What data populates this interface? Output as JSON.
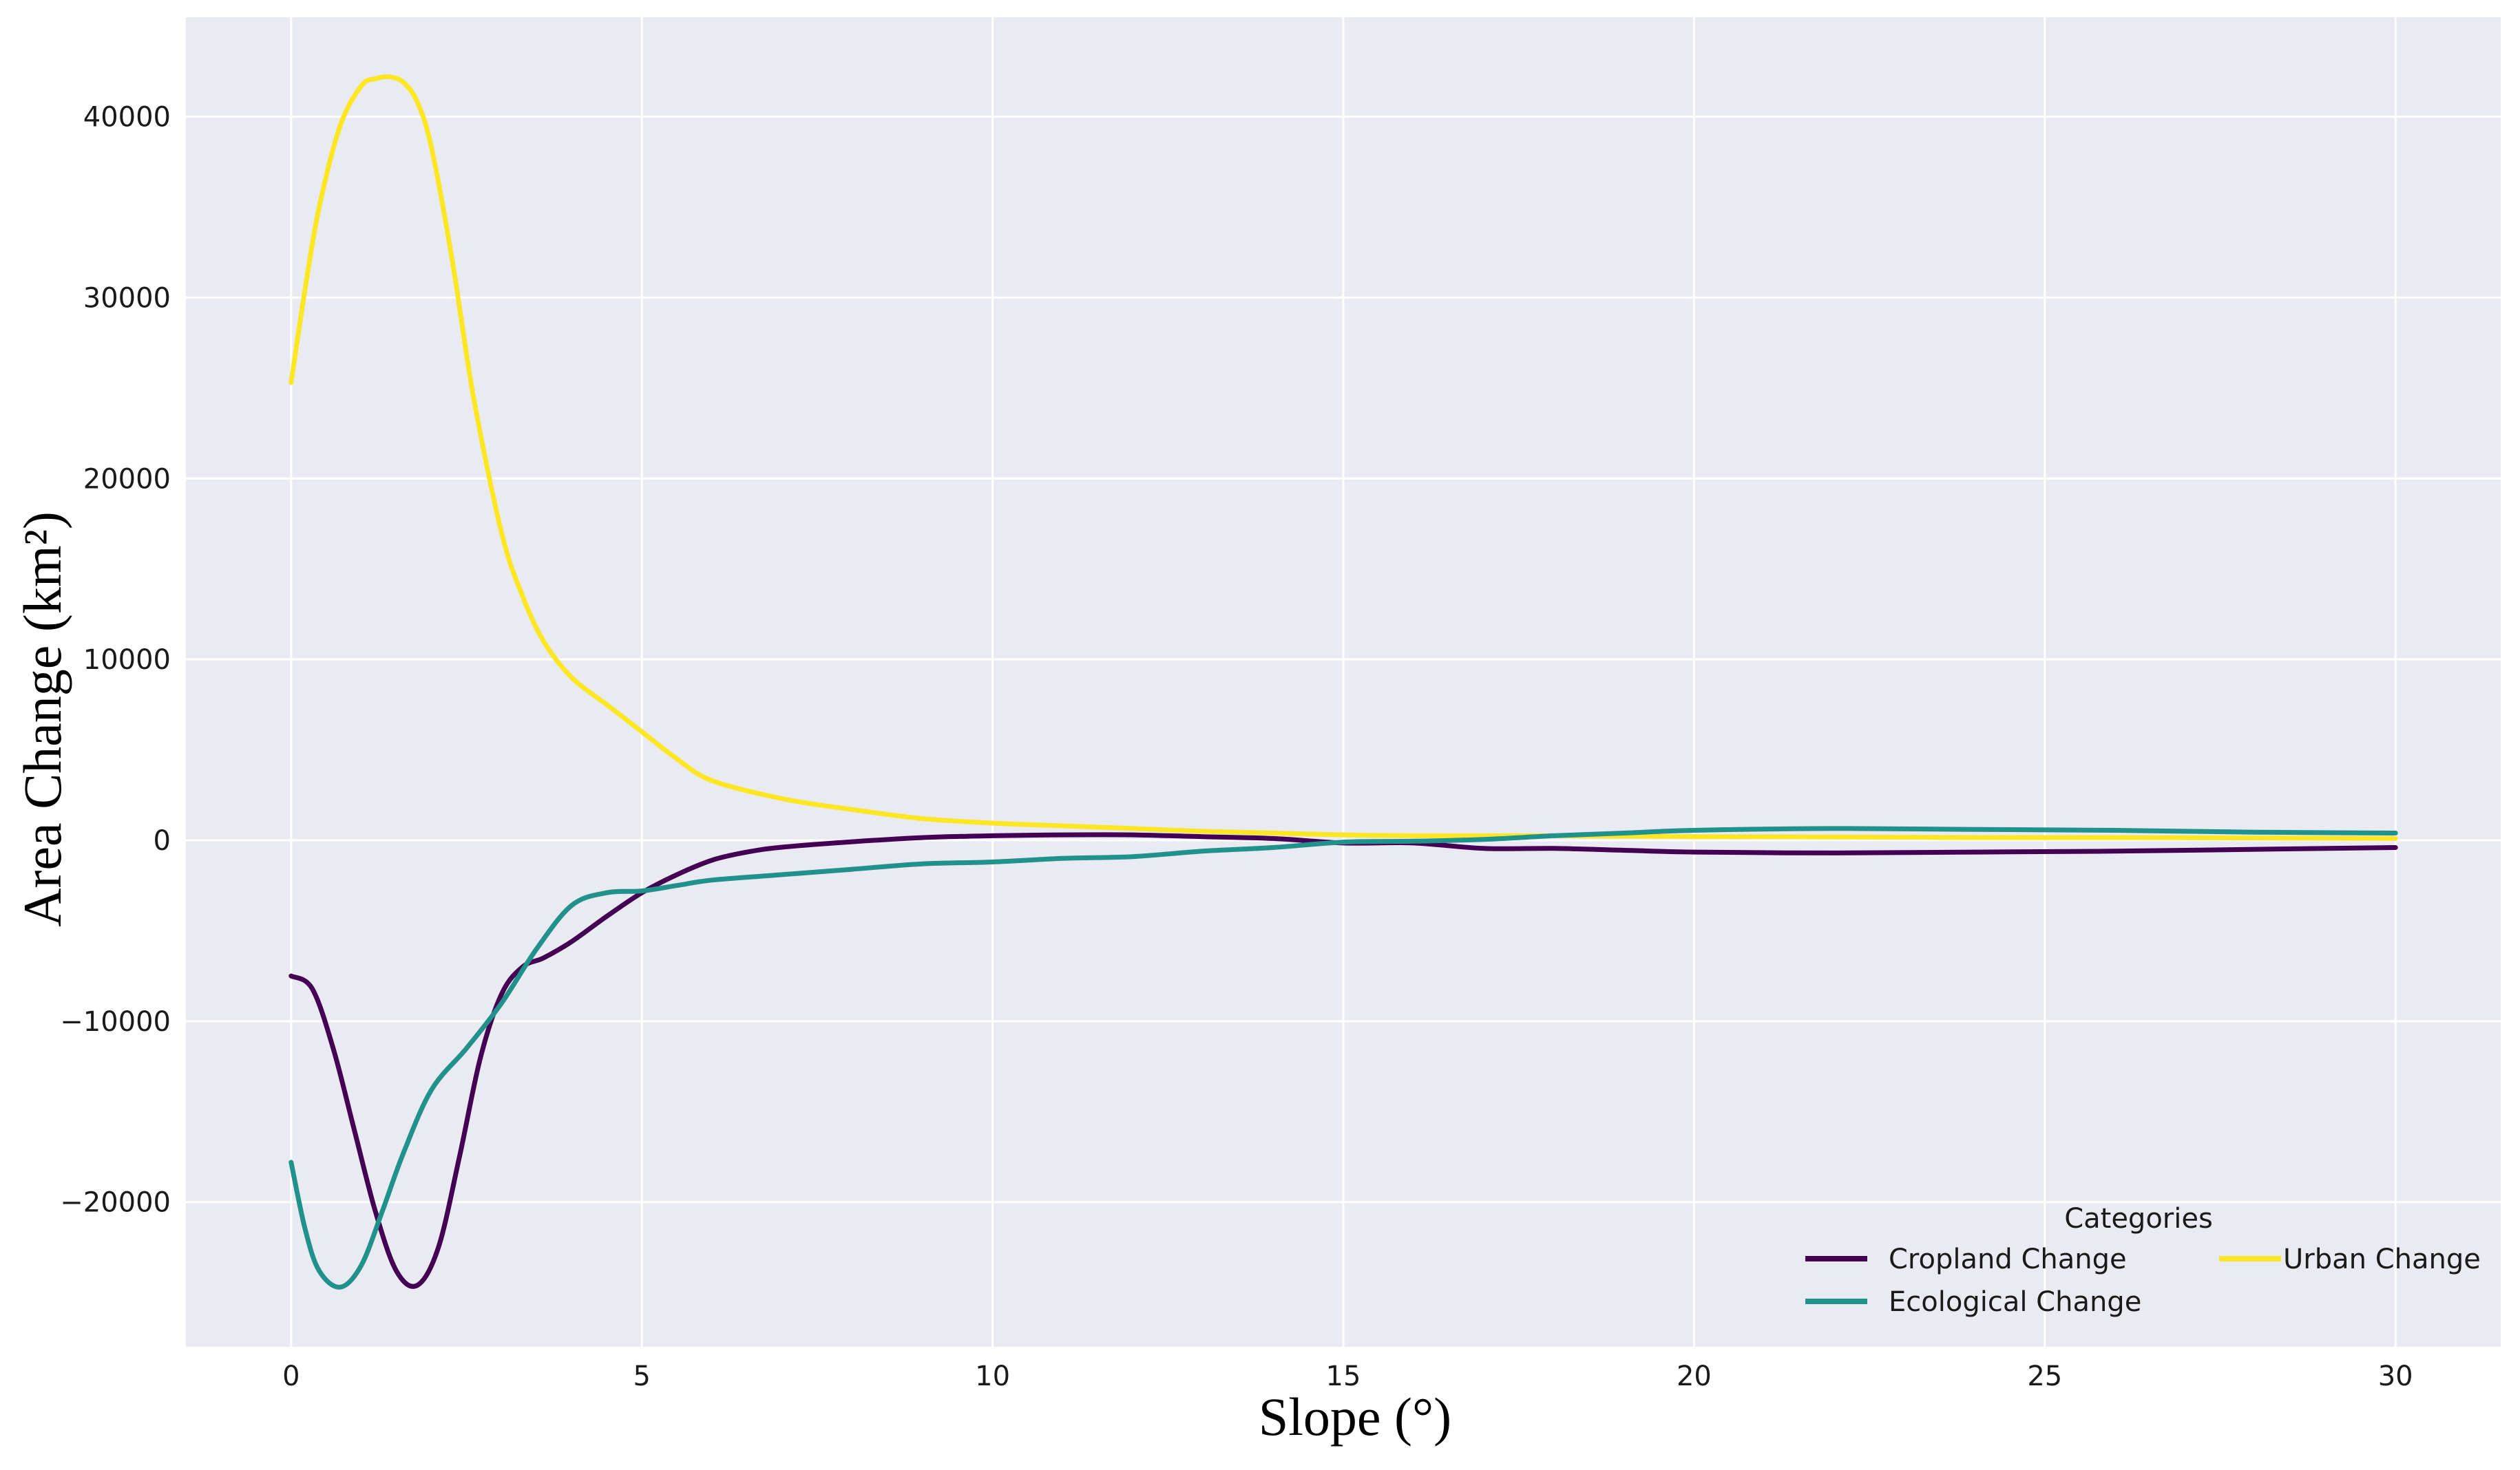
{
  "chart_data": {
    "type": "line",
    "xlabel": "Slope (°)",
    "ylabel": "Area Change (km²)",
    "xlim": [
      -1.5,
      31.5
    ],
    "ylim": [
      -28000,
      45500
    ],
    "x_ticks": [
      0,
      5,
      10,
      15,
      20,
      25,
      30
    ],
    "x_tick_labels": [
      "0",
      "5",
      "10",
      "15",
      "20",
      "25",
      "30"
    ],
    "y_ticks": [
      -20000,
      -10000,
      0,
      10000,
      20000,
      30000,
      40000
    ],
    "y_tick_labels": [
      "−20000",
      "−10000",
      "0",
      "10000",
      "20000",
      "30000",
      "40000"
    ],
    "grid": true,
    "legend": {
      "title": "Categories",
      "placement": "lower-right",
      "columns": 2
    },
    "series": [
      {
        "name": "Cropland Change",
        "color": "#440154",
        "x": [
          0,
          0.3,
          0.6,
          0.9,
          1.2,
          1.5,
          1.8,
          2.1,
          2.4,
          2.7,
          3.0,
          3.3,
          3.6,
          4.0,
          4.5,
          5.0,
          5.5,
          6.0,
          6.5,
          7.0,
          8.0,
          9.0,
          10.0,
          11.0,
          12.0,
          13.0,
          14.0,
          15.0,
          16.0,
          17.0,
          18.0,
          19.0,
          20.0,
          22.0,
          24.0,
          26.0,
          28.0,
          30.0
        ],
        "y": [
          -7500,
          -8200,
          -11500,
          -16000,
          -20500,
          -23800,
          -24600,
          -22500,
          -17500,
          -12000,
          -8500,
          -7000,
          -6500,
          -5600,
          -4200,
          -2900,
          -1900,
          -1100,
          -650,
          -380,
          -80,
          150,
          250,
          300,
          300,
          200,
          100,
          -150,
          -150,
          -450,
          -450,
          -550,
          -650,
          -700,
          -650,
          -600,
          -500,
          -400
        ]
      },
      {
        "name": "Ecological Change",
        "color": "#21918c",
        "x": [
          0,
          0.2,
          0.4,
          0.7,
          1.0,
          1.3,
          1.6,
          2.0,
          2.5,
          3.0,
          3.5,
          4.0,
          4.5,
          5.0,
          5.5,
          6.0,
          7.0,
          8.0,
          9.0,
          10.0,
          11.0,
          12.0,
          13.0,
          14.0,
          15.0,
          16.0,
          17.0,
          18.0,
          19.0,
          20.0,
          22.0,
          24.0,
          26.0,
          28.0,
          30.0
        ],
        "y": [
          -17800,
          -21500,
          -23800,
          -24700,
          -23500,
          -20500,
          -17300,
          -13800,
          -11500,
          -9000,
          -6000,
          -3600,
          -2900,
          -2800,
          -2500,
          -2200,
          -1900,
          -1600,
          -1300,
          -1200,
          -1000,
          -900,
          -600,
          -400,
          -100,
          -50,
          50,
          250,
          400,
          550,
          650,
          600,
          550,
          450,
          400
        ]
      },
      {
        "name": "Urban Change",
        "color": "#fde725",
        "x": [
          0,
          0.2,
          0.4,
          0.7,
          1.0,
          1.2,
          1.4,
          1.6,
          1.8,
          2.0,
          2.3,
          2.6,
          3.0,
          3.3,
          3.6,
          4.0,
          4.5,
          5.0,
          5.5,
          6.0,
          7.0,
          8.0,
          9.0,
          10.0,
          11.0,
          12.0,
          13.0,
          14.0,
          15.0,
          16.0,
          18.0,
          20.0,
          22.0,
          24.0,
          26.0,
          28.0,
          30.0
        ],
        "y": [
          25300,
          30500,
          35000,
          39500,
          41700,
          42100,
          42200,
          41900,
          40800,
          38300,
          32000,
          24500,
          17000,
          13500,
          11000,
          9000,
          7500,
          6000,
          4500,
          3300,
          2300,
          1700,
          1200,
          950,
          800,
          650,
          500,
          400,
          300,
          250,
          250,
          200,
          180,
          150,
          150,
          130,
          100
        ]
      }
    ]
  }
}
